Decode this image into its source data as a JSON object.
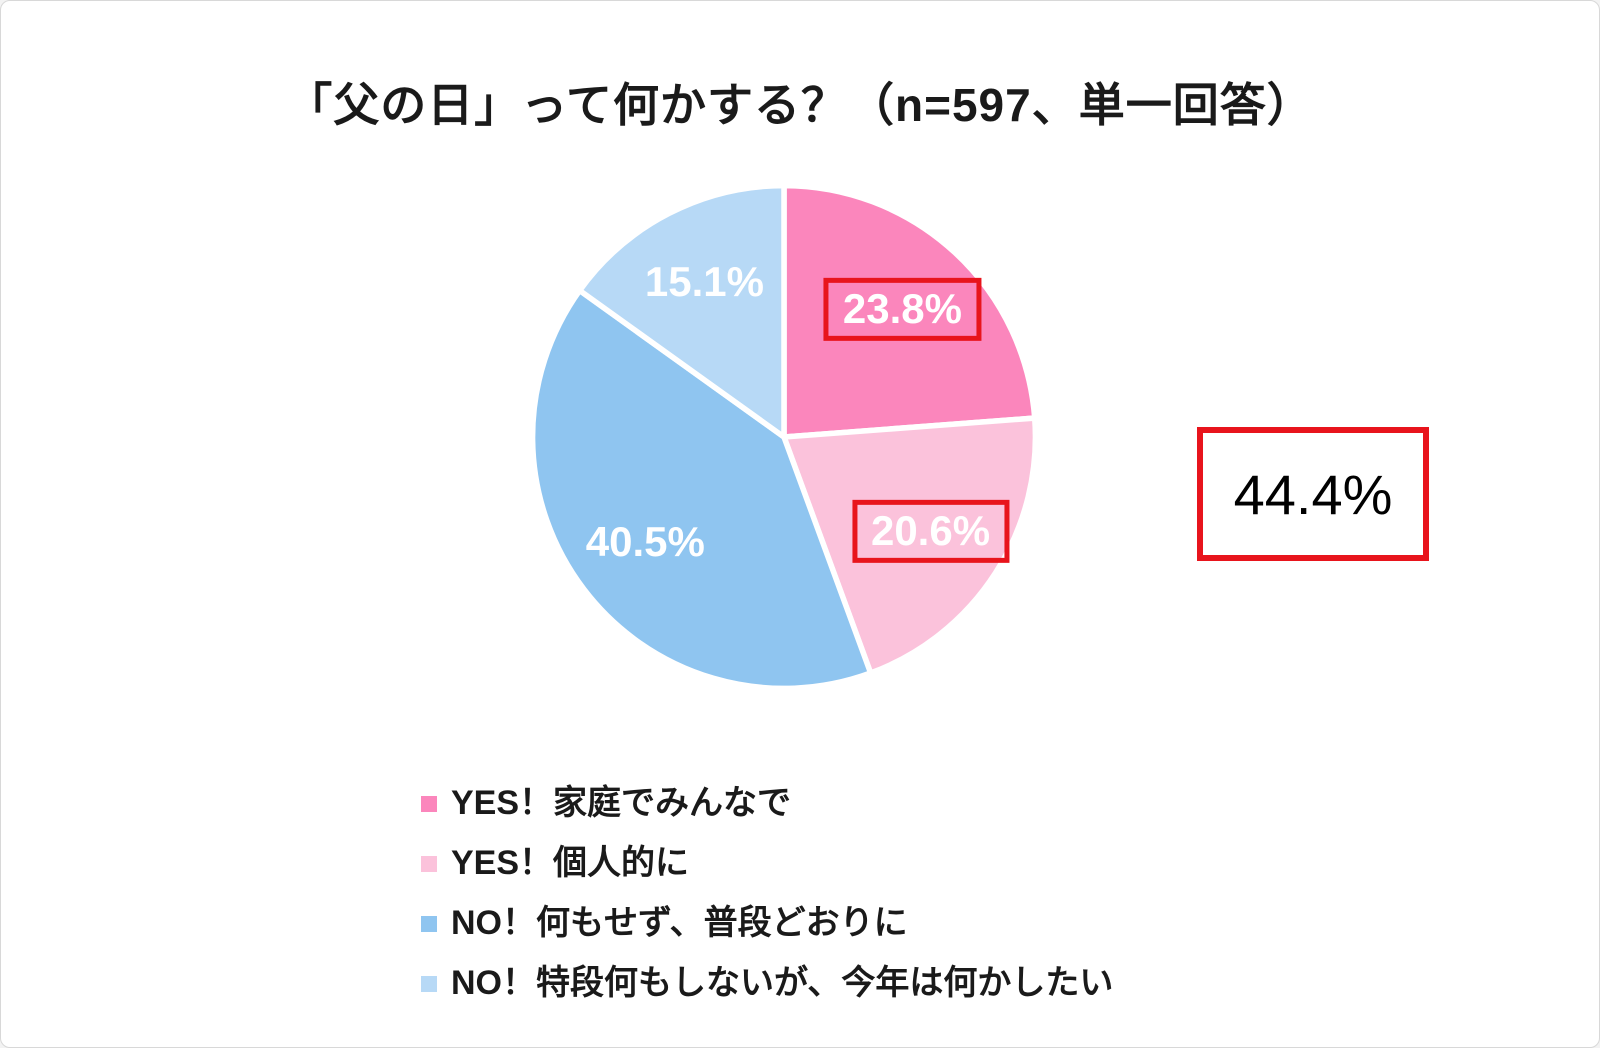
{
  "chart_data": {
    "type": "pie",
    "title": "「父の日」って何かする？（n=597、単一回答）",
    "n": 597,
    "start_angle_deg": 0,
    "direction": "clockwise",
    "slices": [
      {
        "label": "YES！家庭でみんなで",
        "value": 23.8,
        "display": "23.8%",
        "color": "#fb86bc",
        "text_color": "#ffffff",
        "boxed": true
      },
      {
        "label": "YES！個人的に",
        "value": 20.6,
        "display": "20.6%",
        "color": "#fbc2db",
        "text_color": "#ffffff",
        "boxed": true
      },
      {
        "label": "NO！何もせず、普段どおりに",
        "value": 40.5,
        "display": "40.5%",
        "color": "#8fc5f0",
        "text_color": "#ffffff",
        "boxed": false
      },
      {
        "label": "NO！特段何もしないが、今年は何かしたい",
        "value": 15.1,
        "display": "15.1%",
        "color": "#b7d9f6",
        "text_color": "#ffffff",
        "boxed": false
      }
    ],
    "annotation": {
      "text": "44.4%",
      "color": "#000000",
      "border_color": "#e8141c"
    },
    "highlight_color": "#e8141c",
    "legend_position": "bottom-left",
    "grid": false
  }
}
